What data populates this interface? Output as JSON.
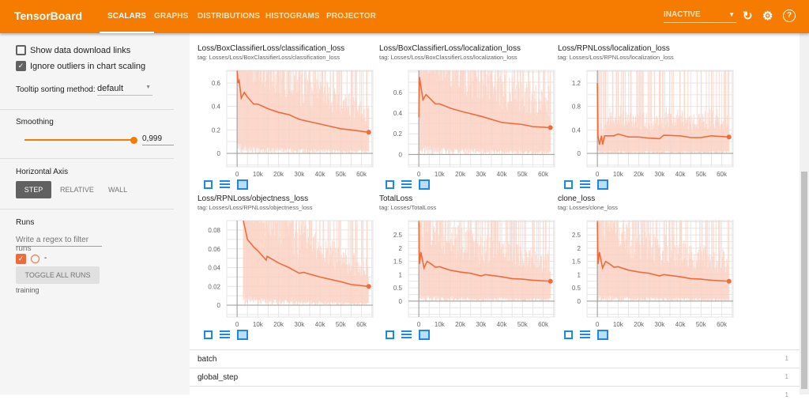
{
  "header": {
    "brand": "TensorBoard",
    "tabs": [
      {
        "label": "SCALARS",
        "active": true
      },
      {
        "label": "GRAPHS"
      },
      {
        "label": "DISTRIBUTIONS"
      },
      {
        "label": "HISTOGRAMS"
      },
      {
        "label": "PROJECTOR"
      }
    ],
    "status_select": "INACTIVE",
    "icons": [
      "refresh-icon",
      "settings-icon",
      "help-icon"
    ]
  },
  "sidebar": {
    "show_download_links": {
      "label": "Show data download links",
      "checked": false
    },
    "ignore_outliers": {
      "label": "Ignore outliers in chart scaling",
      "checked": true
    },
    "tooltip_sorting": {
      "label": "Tooltip sorting method:",
      "value": "default"
    },
    "smoothing": {
      "label": "Smoothing",
      "value": "0,999",
      "fraction": 0.999
    },
    "horizontal_axis": {
      "label": "Horizontal Axis",
      "options": [
        "STEP",
        "RELATIVE",
        "WALL"
      ],
      "selected": "STEP"
    },
    "runs": {
      "label": "Runs",
      "filter_placeholder": "Write a regex to filter runs",
      "run_name": "-",
      "toggle_label": "TOGGLE ALL RUNS",
      "run_label": "training"
    }
  },
  "colors": {
    "accent": "#f57c00",
    "series": "#ef6c3a",
    "raw": "#fbd2c4"
  },
  "chart_data": [
    {
      "type": "line",
      "title": "Loss/BoxClassifierLoss/classification_loss",
      "tag": "tag: Losses/Loss/BoxClassifierLoss/classification_loss",
      "xlim": [
        -5000,
        65500
      ],
      "ylim": [
        -0.115,
        0.708
      ],
      "yticks": [
        0,
        0.2,
        0.4,
        0.6
      ],
      "xticks": [
        0,
        10000,
        20000,
        30000,
        40000,
        50000,
        60000
      ],
      "xtick_labels": [
        "0",
        "10k",
        "20k",
        "30k",
        "40k",
        "50k",
        "60k"
      ],
      "series": [
        {
          "name": "training (smoothed)",
          "x": [
            0,
            500,
            1000,
            2000,
            3500,
            5000,
            8000,
            10000,
            15000,
            20000,
            25000,
            30000,
            40000,
            50000,
            55000,
            63500
          ],
          "y": [
            0.7,
            0.6,
            0.62,
            0.47,
            0.52,
            0.48,
            0.42,
            0.42,
            0.38,
            0.35,
            0.33,
            0.29,
            0.25,
            0.21,
            0.2,
            0.18
          ]
        }
      ]
    },
    {
      "type": "line",
      "title": "Loss/BoxClassifierLoss/localization_loss",
      "tag": "tag: Losses/Loss/BoxClassifierLoss/localization_loss",
      "xlim": [
        -5000,
        65500
      ],
      "ylim": [
        -0.12,
        0.815
      ],
      "yticks": [
        0,
        0.2,
        0.4,
        0.6
      ],
      "xticks": [
        0,
        10000,
        20000,
        30000,
        40000,
        50000,
        60000
      ],
      "xtick_labels": [
        "0",
        "10k",
        "20k",
        "30k",
        "40k",
        "50k",
        "60k"
      ],
      "series": [
        {
          "name": "training (smoothed)",
          "x": [
            0,
            300,
            1000,
            2000,
            3500,
            5000,
            8000,
            10000,
            15000,
            20000,
            30000,
            40000,
            50000,
            55000,
            63500
          ],
          "y": [
            0.36,
            0.75,
            0.66,
            0.53,
            0.58,
            0.55,
            0.49,
            0.49,
            0.45,
            0.42,
            0.37,
            0.31,
            0.29,
            0.27,
            0.26
          ]
        }
      ]
    },
    {
      "type": "line",
      "title": "Loss/RPNLoss/localization_loss",
      "tag": "tag: Losses/Loss/RPNLoss/localization_loss",
      "xlim": [
        -5000,
        65500
      ],
      "ylim": [
        -0.229,
        1.416
      ],
      "yticks": [
        0,
        0.4,
        0.8,
        1.2
      ],
      "xticks": [
        0,
        10000,
        20000,
        30000,
        40000,
        50000,
        60000
      ],
      "xtick_labels": [
        "0",
        "10k",
        "20k",
        "30k",
        "40k",
        "50k",
        "60k"
      ],
      "series": [
        {
          "name": "training (smoothed)",
          "x": [
            0,
            300,
            1000,
            2000,
            2500,
            3500,
            5000,
            8000,
            10000,
            15000,
            20000,
            25000,
            30000,
            32000,
            40000,
            45000,
            50000,
            55000,
            63500
          ],
          "y": [
            1.2,
            0.3,
            0.15,
            0.3,
            0.15,
            0.3,
            0.3,
            0.3,
            0.33,
            0.28,
            0.28,
            0.26,
            0.25,
            0.31,
            0.3,
            0.27,
            0.27,
            0.3,
            0.28
          ]
        }
      ]
    },
    {
      "type": "line",
      "title": "Loss/RPNLoss/objectness_loss",
      "tag": "tag: Losses/Loss/RPNLoss/objectness_loss",
      "xlim": [
        -5000,
        65500
      ],
      "ylim": [
        -0.0126,
        0.0901
      ],
      "yticks": [
        0,
        0.02,
        0.04,
        0.06,
        0.08
      ],
      "xticks": [
        0,
        10000,
        20000,
        30000,
        40000,
        50000,
        60000
      ],
      "xtick_labels": [
        "0",
        "10k",
        "20k",
        "30k",
        "40k",
        "50k",
        "60k"
      ],
      "series": [
        {
          "name": "training (smoothed)",
          "x": [
            3000,
            4000,
            5000,
            8000,
            10000,
            14000,
            14500,
            20000,
            25000,
            30000,
            32000,
            40000,
            50000,
            55000,
            63500
          ],
          "y": [
            0.09,
            0.08,
            0.07,
            0.062,
            0.058,
            0.048,
            0.052,
            0.045,
            0.04,
            0.034,
            0.035,
            0.03,
            0.025,
            0.022,
            0.02
          ]
        }
      ]
    },
    {
      "type": "line",
      "title": "TotalLoss",
      "tag": "tag: Losses/TotalLoss",
      "xlim": [
        -5000,
        65500
      ],
      "ylim": [
        -0.6,
        3.04
      ],
      "yticks": [
        0,
        0.5,
        1,
        1.5,
        2,
        2.5
      ],
      "xticks": [
        0,
        10000,
        20000,
        30000,
        40000,
        50000,
        60000
      ],
      "xtick_labels": [
        "0",
        "10k",
        "20k",
        "30k",
        "40k",
        "50k",
        "60k"
      ],
      "series": [
        {
          "name": "training (smoothed)",
          "x": [
            0,
            300,
            1000,
            2500,
            4000,
            6000,
            8000,
            10000,
            15000,
            20000,
            25000,
            30000,
            32000,
            40000,
            45000,
            50000,
            55000,
            63500
          ],
          "y": [
            3,
            1.4,
            1.85,
            1.25,
            1.5,
            1.4,
            1.28,
            1.3,
            1.17,
            1.1,
            1.05,
            0.95,
            1.0,
            0.92,
            0.85,
            0.83,
            0.79,
            0.75
          ]
        }
      ]
    },
    {
      "type": "line",
      "title": "clone_loss",
      "tag": "tag: Losses/clone_loss",
      "xlim": [
        -5000,
        65500
      ],
      "ylim": [
        -0.6,
        3.04
      ],
      "yticks": [
        0,
        0.5,
        1,
        1.5,
        2,
        2.5
      ],
      "xticks": [
        0,
        10000,
        20000,
        30000,
        40000,
        50000,
        60000
      ],
      "xtick_labels": [
        "0",
        "10k",
        "20k",
        "30k",
        "40k",
        "50k",
        "60k"
      ],
      "series": [
        {
          "name": "training (smoothed)",
          "x": [
            0,
            300,
            1000,
            2500,
            4000,
            6000,
            8000,
            10000,
            15000,
            20000,
            25000,
            30000,
            32000,
            40000,
            45000,
            50000,
            55000,
            63500
          ],
          "y": [
            3,
            1.4,
            1.85,
            1.25,
            1.5,
            1.4,
            1.28,
            1.3,
            1.17,
            1.1,
            1.05,
            0.95,
            1.0,
            0.92,
            0.85,
            0.83,
            0.79,
            0.75
          ]
        }
      ]
    }
  ],
  "groups": [
    {
      "name": "batch",
      "count": "1"
    },
    {
      "name": "global_step",
      "count": "1"
    },
    {
      "name": "",
      "count": "1"
    }
  ]
}
